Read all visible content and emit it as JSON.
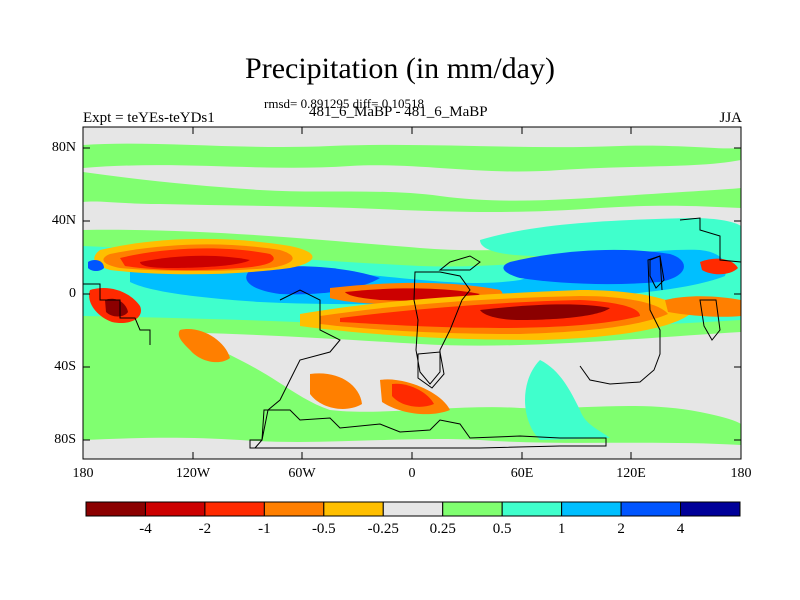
{
  "title": "Precipitation (in mm/day)",
  "stats_line": "rmsd= 0.891295 diff= 0.10518",
  "subtitle": "481_6_MaBP - 481_6_MaBP",
  "left_label": "Expt = teYEs-teYDs1",
  "season": "JJA",
  "lat_ticks": [
    "80N",
    "40N",
    "0",
    "40S",
    "80S"
  ],
  "lon_ticks": [
    "180",
    "120W",
    "60W",
    "0",
    "60E",
    "120E",
    "180"
  ],
  "colorbar": {
    "colors": [
      "#8b0000",
      "#cc0000",
      "#ff2a00",
      "#ff7f00",
      "#ffbf00",
      "#e6e6e6",
      "#80ff70",
      "#40ffcc",
      "#00bfff",
      "#0055ff",
      "#000099"
    ],
    "labels": [
      "-4",
      "-2",
      "-1",
      "-0.5",
      "-0.25",
      "0.25",
      "0.5",
      "1",
      "2",
      "4"
    ]
  }
}
